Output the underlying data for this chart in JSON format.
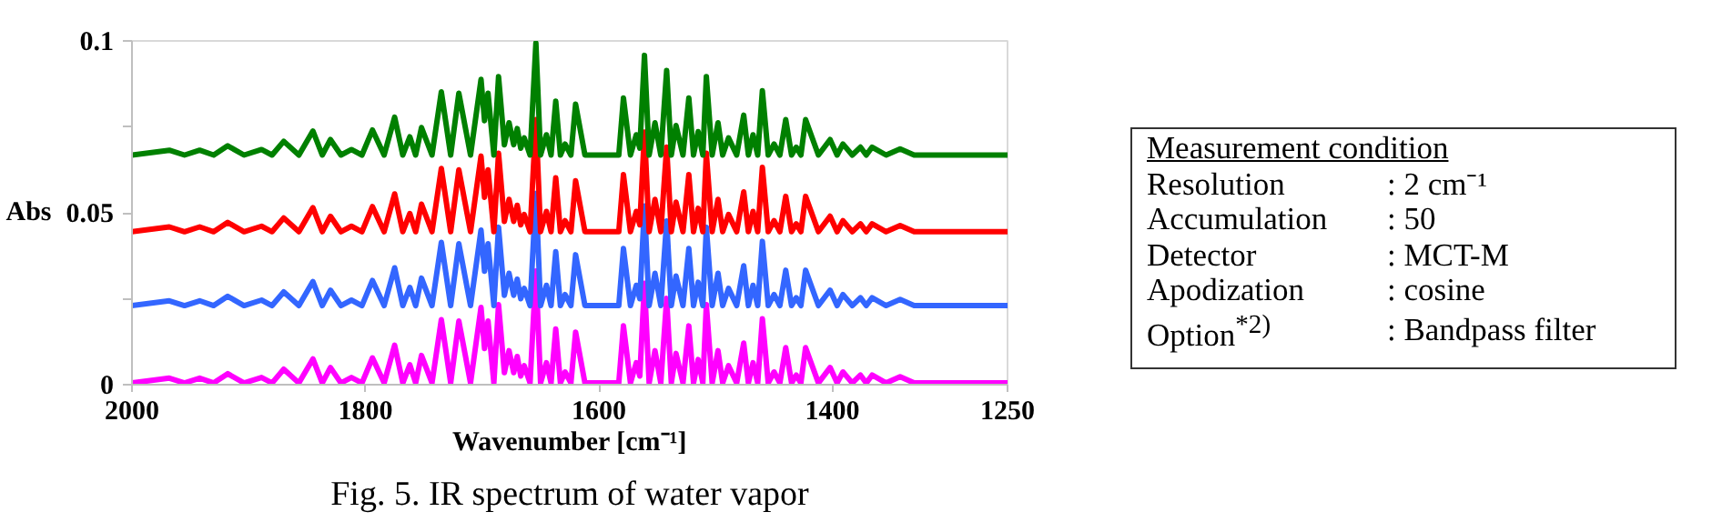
{
  "chart_data": [
    {
      "type": "line",
      "xlabel": "Wavenumber [cm⁻¹]",
      "ylabel": "Abs",
      "annotations": [
        "Fig. 5. IR spectrum of water vapor"
      ],
      "xlim": [
        2000,
        1250
      ],
      "xticks": [
        2000,
        1800,
        1600,
        1400,
        1250
      ],
      "ylim": [
        0,
        0.1
      ],
      "yticks": [
        0,
        {
          "value": 0.025,
          "label": null
        },
        0.05,
        {
          "value": 0.075,
          "label": null
        },
        0.1
      ],
      "grid": false,
      "marker": "none",
      "line_style": "solid",
      "x": [
        2000,
        1968,
        1955,
        1942,
        1930,
        1918,
        1904,
        1889,
        1880,
        1870,
        1857,
        1845,
        1837,
        1830,
        1821,
        1812,
        1803,
        1794,
        1784,
        1775,
        1768,
        1762,
        1757,
        1752,
        1743,
        1735,
        1727,
        1720,
        1710,
        1701,
        1698,
        1695,
        1690,
        1686,
        1681,
        1677,
        1673,
        1670,
        1667,
        1664,
        1659,
        1654,
        1650,
        1645,
        1641,
        1637,
        1633,
        1629,
        1624,
        1620,
        1612,
        1583,
        1579,
        1573,
        1568,
        1565,
        1561,
        1557,
        1552,
        1547,
        1542,
        1538,
        1534,
        1528,
        1523,
        1519,
        1515,
        1511,
        1508,
        1503,
        1498,
        1494,
        1489,
        1482,
        1476,
        1472,
        1468,
        1464,
        1460,
        1455,
        1450,
        1445,
        1440,
        1435,
        1431,
        1427,
        1423,
        1412,
        1402,
        1396,
        1391,
        1383,
        1376,
        1371,
        1366,
        1354,
        1342,
        1330,
        1250
      ],
      "series": [
        {
          "color": "#ff00ff",
          "values": [
            0.0005,
            0.0019,
            0.0005,
            0.0019,
            0.0005,
            0.0032,
            0.0005,
            0.0021,
            0.0005,
            0.0045,
            0.0005,
            0.0075,
            0.0005,
            0.005,
            0.0005,
            0.0021,
            0.0005,
            0.0078,
            0.0005,
            0.0115,
            0.0005,
            0.0058,
            0.0005,
            0.0085,
            0.0005,
            0.0189,
            0.0005,
            0.0185,
            0.0005,
            0.0225,
            0.0105,
            0.0185,
            0.0005,
            0.0233,
            0.0035,
            0.0099,
            0.0035,
            0.0082,
            0.0025,
            0.0055,
            0.0005,
            0.0331,
            0.0005,
            0.0064,
            0.0005,
            0.0162,
            0.0005,
            0.0037,
            0.0005,
            0.0153,
            0.0005,
            0.0005,
            0.0171,
            0.0005,
            0.0064,
            0.0025,
            0.0295,
            0.0005,
            0.0099,
            0.0005,
            0.0251,
            0.0005,
            0.0091,
            0.0005,
            0.0171,
            0.0005,
            0.0073,
            0.0005,
            0.0233,
            0.0005,
            0.0099,
            0.0005,
            0.0055,
            0.0005,
            0.0121,
            0.0005,
            0.0064,
            0.0005,
            0.0192,
            0.0005,
            0.0037,
            0.0005,
            0.0108,
            0.0005,
            0.0028,
            0.0005,
            0.0108,
            0.0005,
            0.005,
            0.0005,
            0.0037,
            0.0005,
            0.0028,
            0.0005,
            0.0028,
            0.0005,
            0.0023,
            0.0005,
            0.0005
          ]
        },
        {
          "color": "#3366ff",
          "values": [
            0.023,
            0.0244,
            0.023,
            0.0244,
            0.023,
            0.0257,
            0.023,
            0.0246,
            0.023,
            0.027,
            0.023,
            0.03,
            0.023,
            0.0275,
            0.023,
            0.0246,
            0.023,
            0.0303,
            0.023,
            0.034,
            0.023,
            0.0283,
            0.023,
            0.031,
            0.023,
            0.0414,
            0.023,
            0.041,
            0.023,
            0.045,
            0.033,
            0.041,
            0.023,
            0.0458,
            0.026,
            0.0324,
            0.026,
            0.0307,
            0.025,
            0.028,
            0.023,
            0.0556,
            0.023,
            0.0289,
            0.023,
            0.0387,
            0.023,
            0.0262,
            0.023,
            0.0378,
            0.023,
            0.023,
            0.0396,
            0.023,
            0.0289,
            0.025,
            0.052,
            0.023,
            0.0324,
            0.023,
            0.0476,
            0.023,
            0.0316,
            0.023,
            0.0396,
            0.023,
            0.0298,
            0.023,
            0.0458,
            0.023,
            0.0324,
            0.023,
            0.028,
            0.023,
            0.0346,
            0.023,
            0.0289,
            0.023,
            0.0417,
            0.023,
            0.0262,
            0.023,
            0.0333,
            0.023,
            0.0253,
            0.023,
            0.0333,
            0.023,
            0.0275,
            0.023,
            0.0262,
            0.023,
            0.0253,
            0.023,
            0.0253,
            0.023,
            0.0248,
            0.023,
            0.023
          ]
        },
        {
          "color": "#ff0000",
          "values": [
            0.0445,
            0.0459,
            0.0445,
            0.0459,
            0.0445,
            0.0472,
            0.0445,
            0.0461,
            0.0445,
            0.0485,
            0.0445,
            0.0515,
            0.0445,
            0.049,
            0.0445,
            0.0461,
            0.0445,
            0.0518,
            0.0445,
            0.0555,
            0.0445,
            0.0498,
            0.0445,
            0.0525,
            0.0445,
            0.0629,
            0.0445,
            0.0625,
            0.0445,
            0.0665,
            0.0545,
            0.0625,
            0.0445,
            0.0673,
            0.0475,
            0.0539,
            0.0475,
            0.0522,
            0.0465,
            0.0495,
            0.0445,
            0.0771,
            0.0445,
            0.0504,
            0.0445,
            0.0602,
            0.0445,
            0.0477,
            0.0445,
            0.0593,
            0.0445,
            0.0445,
            0.0611,
            0.0445,
            0.0504,
            0.0465,
            0.0735,
            0.0445,
            0.0539,
            0.0445,
            0.0691,
            0.0445,
            0.0531,
            0.0445,
            0.0611,
            0.0445,
            0.0513,
            0.0445,
            0.0673,
            0.0445,
            0.0539,
            0.0445,
            0.0495,
            0.0445,
            0.0561,
            0.0445,
            0.0504,
            0.0445,
            0.0632,
            0.0445,
            0.0477,
            0.0445,
            0.0548,
            0.0445,
            0.0468,
            0.0445,
            0.0548,
            0.0445,
            0.049,
            0.0445,
            0.0477,
            0.0445,
            0.0468,
            0.0445,
            0.0468,
            0.0445,
            0.0463,
            0.0445,
            0.0445
          ]
        },
        {
          "color": "#008000",
          "values": [
            0.0668,
            0.0682,
            0.0668,
            0.0682,
            0.0668,
            0.0695,
            0.0668,
            0.0684,
            0.0668,
            0.0708,
            0.0668,
            0.0738,
            0.0668,
            0.0713,
            0.0668,
            0.0684,
            0.0668,
            0.0741,
            0.0668,
            0.0778,
            0.0668,
            0.0721,
            0.0668,
            0.0748,
            0.0668,
            0.0852,
            0.0668,
            0.0848,
            0.0668,
            0.0888,
            0.0768,
            0.0848,
            0.0668,
            0.0896,
            0.0698,
            0.0762,
            0.0698,
            0.0745,
            0.0688,
            0.0718,
            0.0668,
            0.0994,
            0.0668,
            0.0727,
            0.0668,
            0.0825,
            0.0668,
            0.07,
            0.0668,
            0.0816,
            0.0668,
            0.0668,
            0.0834,
            0.0668,
            0.0727,
            0.0688,
            0.0958,
            0.0668,
            0.0762,
            0.0668,
            0.0914,
            0.0668,
            0.0754,
            0.0668,
            0.0834,
            0.0668,
            0.0736,
            0.0668,
            0.0896,
            0.0668,
            0.0762,
            0.0668,
            0.0718,
            0.0668,
            0.0784,
            0.0668,
            0.0727,
            0.0668,
            0.0855,
            0.0668,
            0.07,
            0.0668,
            0.0771,
            0.0668,
            0.0691,
            0.0668,
            0.0771,
            0.0668,
            0.0713,
            0.0668,
            0.07,
            0.0668,
            0.0691,
            0.0668,
            0.0691,
            0.0668,
            0.0686,
            0.0668,
            0.0668
          ]
        }
      ]
    },
    {
      "type": "other",
      "title": "Measurement condition",
      "annotations": [
        "Resolution",
        ": 2 cm⁻¹",
        "Accumulation",
        ": 50",
        "Detector",
        ": MCT-M",
        "Apodization",
        ": cosine",
        "Option$^{*2)}$",
        ": Bandpass filter"
      ]
    }
  ]
}
